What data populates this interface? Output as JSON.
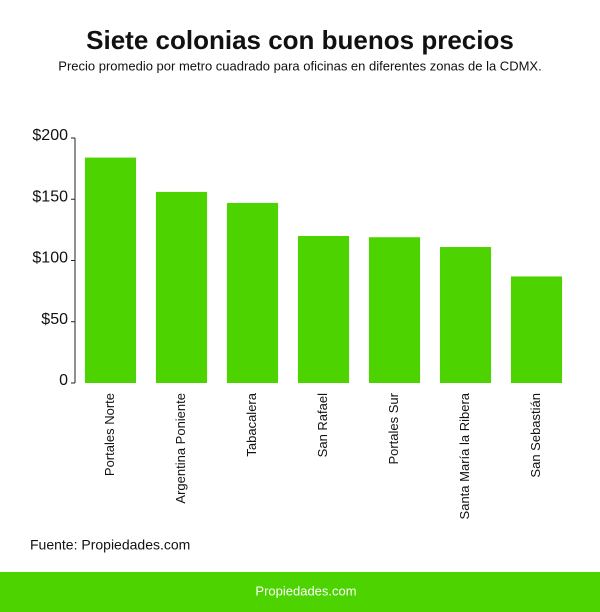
{
  "chart_data": {
    "type": "bar",
    "title": "Siete colonias con buenos precios",
    "subtitle": "Precio promedio por metro cuadrado para oficinas en diferentes zonas de la CDMX.",
    "categories": [
      "Portales Norte",
      "Argentina Poniente",
      "Tabacalera",
      "San Rafael",
      "Portales Sur",
      "Santa María la Ribera",
      "San Sebastián"
    ],
    "values": [
      184,
      156,
      147,
      120,
      119,
      111,
      87
    ],
    "color": "#4cd300",
    "ylim": [
      0,
      200
    ],
    "yticks": [
      0,
      {
        "value": 50,
        "label": "$50"
      },
      {
        "value": 100,
        "label": "$100"
      },
      {
        "value": 150,
        "label": "$150"
      },
      {
        "value": 200,
        "label": "$200"
      }
    ],
    "grid": false,
    "source": "Fuente: Propiedades.com"
  },
  "footer": {
    "brand": "Propiedades.com"
  }
}
